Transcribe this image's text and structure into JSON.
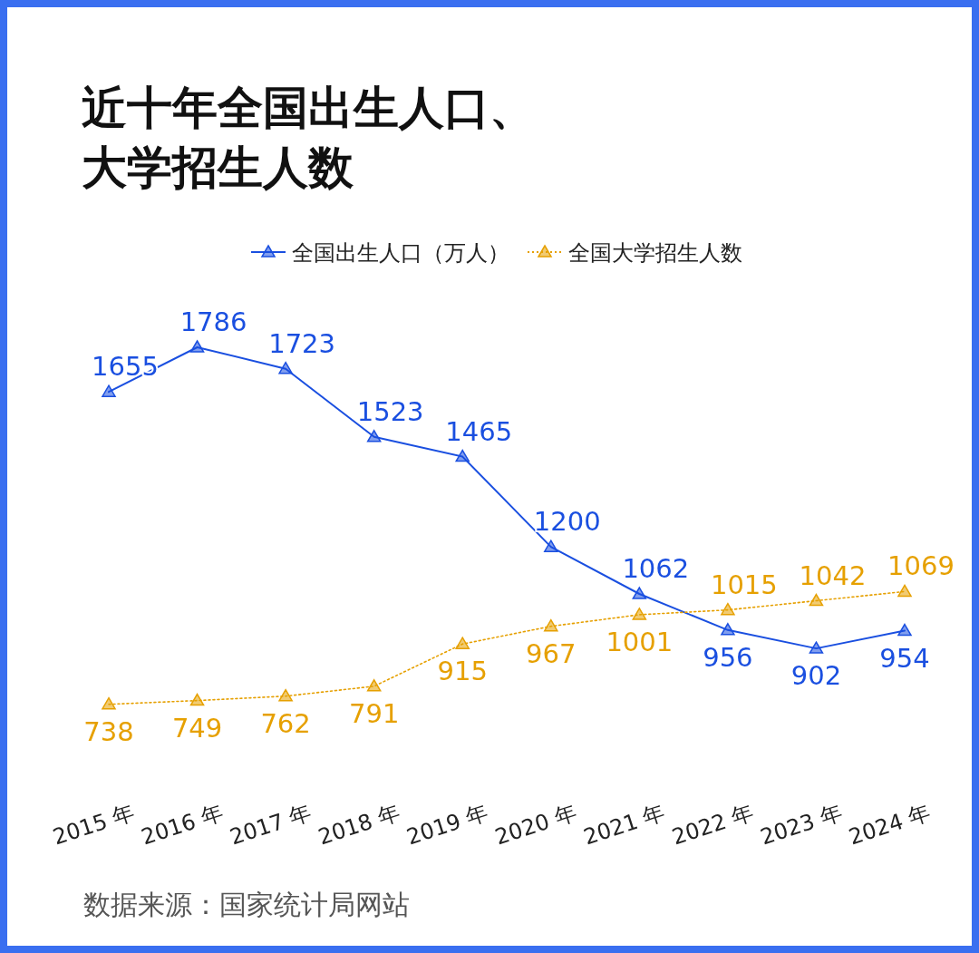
{
  "chart_data": {
    "type": "line",
    "title": "近十年全国出生人口、大学招生人数",
    "categories": [
      "2015 年",
      "2016 年",
      "2017 年",
      "2018 年",
      "2019 年",
      "2020 年",
      "2021 年",
      "2022 年",
      "2023 年",
      "2024 年"
    ],
    "series": [
      {
        "name": "全国出生人口（万人）",
        "color": "#1a4fe0",
        "values": [
          1655,
          1786,
          1723,
          1523,
          1465,
          1200,
          1062,
          956,
          902,
          954
        ],
        "line_style": "solid"
      },
      {
        "name": "全国大学招生人数",
        "color": "#e6a000",
        "values": [
          738,
          749,
          762,
          791,
          915,
          967,
          1001,
          1015,
          1042,
          1069
        ],
        "line_style": "dotted"
      }
    ],
    "marker": "triangle",
    "data_labels": true,
    "legend": "top",
    "grid": false,
    "annotations": [
      "数据来源：国家统计局网站"
    ]
  }
}
